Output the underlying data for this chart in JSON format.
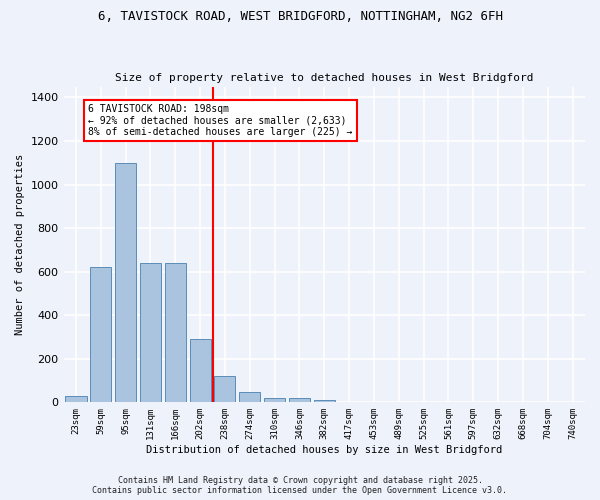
{
  "title_line1": "6, TAVISTOCK ROAD, WEST BRIDGFORD, NOTTINGHAM, NG2 6FH",
  "title_line2": "Size of property relative to detached houses in West Bridgford",
  "xlabel": "Distribution of detached houses by size in West Bridgford",
  "ylabel": "Number of detached properties",
  "categories": [
    "23sqm",
    "59sqm",
    "95sqm",
    "131sqm",
    "166sqm",
    "202sqm",
    "238sqm",
    "274sqm",
    "310sqm",
    "346sqm",
    "382sqm",
    "417sqm",
    "453sqm",
    "489sqm",
    "525sqm",
    "561sqm",
    "597sqm",
    "632sqm",
    "668sqm",
    "704sqm",
    "740sqm"
  ],
  "values": [
    28,
    621,
    1100,
    638,
    638,
    290,
    120,
    48,
    22,
    22,
    12,
    0,
    0,
    0,
    0,
    0,
    0,
    0,
    0,
    0,
    0
  ],
  "bar_color": "#aac4e0",
  "bar_edge_color": "#5b8db8",
  "vline_x": 5.5,
  "vline_color": "red",
  "annotation_text": "6 TAVISTOCK ROAD: 198sqm\n← 92% of detached houses are smaller (2,633)\n8% of semi-detached houses are larger (225) →",
  "annotation_box_color": "white",
  "annotation_box_edge": "red",
  "ylim": [
    0,
    1450
  ],
  "yticks": [
    0,
    200,
    400,
    600,
    800,
    1000,
    1200,
    1400
  ],
  "background_color": "#eef2fb",
  "grid_color": "white",
  "footer_line1": "Contains HM Land Registry data © Crown copyright and database right 2025.",
  "footer_line2": "Contains public sector information licensed under the Open Government Licence v3.0."
}
